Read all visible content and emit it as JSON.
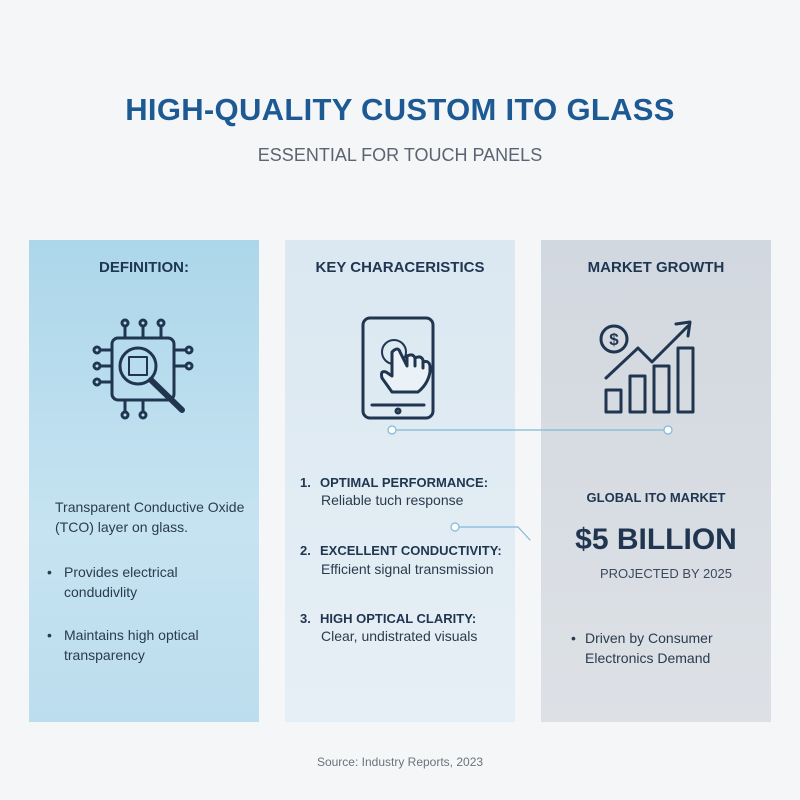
{
  "header": {
    "title": "HIGH-QUALITY CUSTOM ITO GLASS",
    "subtitle": "ESSENTIAL FOR TOUCH PANELS"
  },
  "panels": [
    {
      "heading": "DEFINITION:",
      "body": "Transparent Conductive Oxide (TCO) layer on glass.",
      "bullets": [
        "Provides electrical condudivlity",
        "Maintains high optical transparency"
      ]
    },
    {
      "heading": "KEY CHARACERISTICS",
      "items": [
        {
          "number": "1.",
          "title": "OPTIMAL PERFORMANCE:",
          "text": "Reliable tuch response"
        },
        {
          "number": "2.",
          "title": "EXCELLENT CONDUCTIVITY:",
          "text": "Efficient signal transmission"
        },
        {
          "number": "3.",
          "title": "HIGH OPTICAL CLARITY:",
          "text": "Clear, undistrated visuals"
        }
      ]
    },
    {
      "heading": "MARKET GROWTH",
      "label": "GLOBAL ITO MARKET",
      "figure": "$5 BILLION",
      "note": "PROJECTED BY 2025",
      "bullets": [
        "Driven by Consumer Electronics Demand"
      ]
    }
  ],
  "footer": {
    "source": "Source: Industry Reports, 2023"
  }
}
